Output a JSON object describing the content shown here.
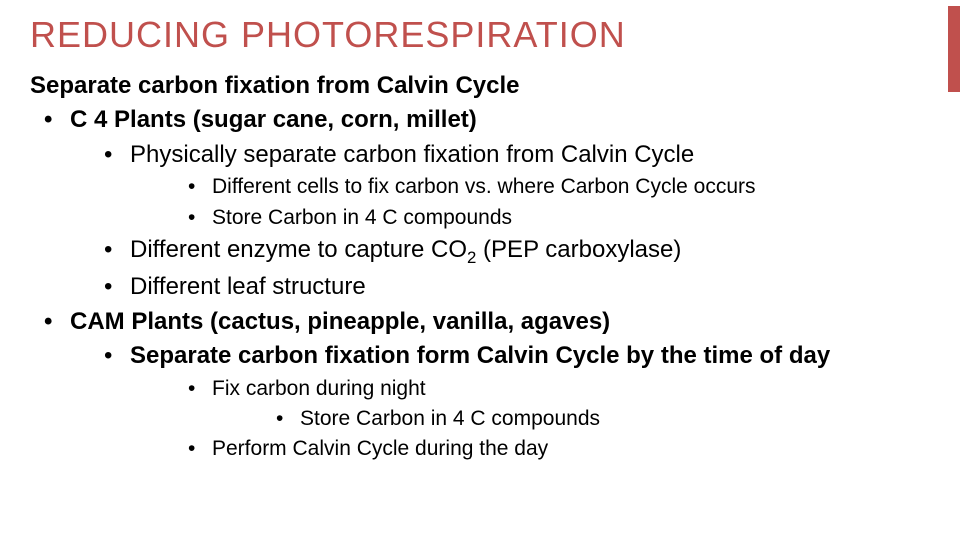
{
  "accent_color": "#c0504d",
  "title": "REDUCING PHOTORESPIRATION",
  "intro": "Separate carbon fixation from Calvin Cycle",
  "c4": {
    "heading": "C 4 Plants (sugar cane, corn, millet)",
    "sub1": "Physically separate carbon fixation from Calvin Cycle",
    "sub1a": "Different cells to fix carbon vs. where Carbon Cycle occurs",
    "sub1b": "Store Carbon in 4 C compounds",
    "sub2_pre": "Different enzyme to capture CO",
    "sub2_sub": "2",
    "sub2_post": " (PEP carboxylase)",
    "sub3": "Different leaf structure"
  },
  "cam": {
    "heading": "CAM Plants (cactus, pineapple, vanilla, agaves)",
    "sub1": "Separate carbon fixation form Calvin Cycle by the time of day",
    "sub1a": "Fix carbon during night",
    "sub1a1": "Store Carbon in 4 C compounds",
    "sub1b": "Perform Calvin Cycle during the day"
  }
}
